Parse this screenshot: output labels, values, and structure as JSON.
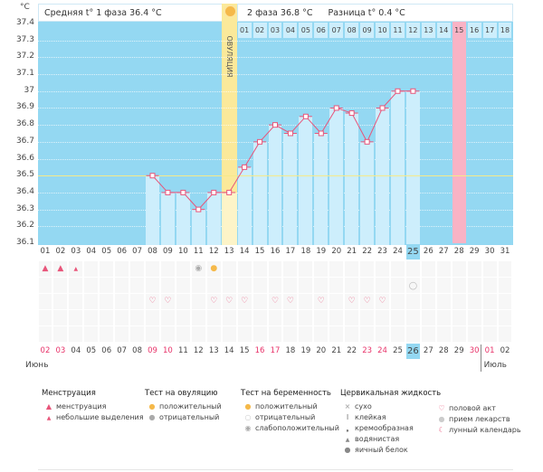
{
  "header": {
    "unit": "°C",
    "phase1": "Средняя t° 1 фаза 36.4 °C",
    "phase2": "2 фаза 36.8 °C",
    "diff": "Разница t° 0.4 °C",
    "ovulation": "ОВУЛЯЦИЯ"
  },
  "colors": {
    "bg": "#94d8f2",
    "bar": "#cdeefc",
    "line": "#e8557a",
    "ovulation": "#fbe99a",
    "next_cycle_start": "#f9b3c5",
    "coverline": "#f5e98a"
  },
  "chart_data": {
    "type": "line",
    "title": "",
    "xlabel": "",
    "ylabel": "°C",
    "ylim": [
      36.1,
      37.4
    ],
    "y_ticks": [
      "37.4",
      "37.3",
      "37.2",
      "37.1",
      "37",
      "36.9",
      "36.8",
      "36.7",
      "36.6",
      "36.5",
      "36.4",
      "36.3",
      "36.2",
      "36.1"
    ],
    "cycle_days": [
      "01",
      "02",
      "03",
      "04",
      "05",
      "06",
      "07",
      "08",
      "09",
      "10",
      "11",
      "12",
      "13",
      "14",
      "15",
      "16",
      "17",
      "18",
      "19",
      "20",
      "21",
      "22",
      "23",
      "24",
      "25",
      "26",
      "27",
      "28",
      "29",
      "30",
      "31"
    ],
    "temperatures": [
      null,
      null,
      null,
      null,
      null,
      null,
      null,
      36.5,
      36.4,
      36.4,
      36.3,
      36.4,
      36.4,
      36.55,
      36.7,
      36.8,
      36.75,
      36.85,
      36.75,
      36.9,
      36.87,
      36.7,
      36.9,
      37.0,
      37.0,
      null,
      null,
      null,
      null,
      null,
      null
    ],
    "coverline": 36.5,
    "ovulation_day": 13,
    "current_day": 25,
    "next_cycle_days": [
      "01",
      "02",
      "03",
      "04",
      "05",
      "06",
      "07",
      "08",
      "09",
      "10",
      "11",
      "12",
      "13",
      "14",
      "15",
      "16",
      "17",
      "18"
    ],
    "next_cycle_highlight_day": "15"
  },
  "dates": [
    "02",
    "03",
    "04",
    "05",
    "06",
    "07",
    "08",
    "09",
    "10",
    "11",
    "12",
    "13",
    "14",
    "15",
    "16",
    "17",
    "18",
    "19",
    "20",
    "21",
    "22",
    "23",
    "24",
    "25",
    "26",
    "27",
    "28",
    "29",
    "30",
    "01",
    "02"
  ],
  "red_dates": [
    0,
    1,
    7,
    8,
    14,
    15,
    21,
    22,
    28,
    29
  ],
  "months": {
    "june": "Июнь",
    "july": "Июль"
  },
  "legend": {
    "menstruation": {
      "title": "Менструация",
      "items": [
        "менструация",
        "небольшие выделения"
      ]
    },
    "ovulation_test": {
      "title": "Тест на овуляцию",
      "items": [
        "положительный",
        "отрицательный"
      ]
    },
    "pregnancy_test": {
      "title": "Тест на беременность",
      "items": [
        "положительный",
        "отрицательный",
        "слабоположительный"
      ]
    },
    "cervical": {
      "title": "Цервикальная жидкость",
      "items": [
        "сухо",
        "клейкая",
        "кремообразная",
        "водянистая",
        "яичный белок"
      ]
    },
    "other": {
      "items": [
        "половой акт",
        "прием лекарств",
        "лунный календарь"
      ]
    }
  }
}
